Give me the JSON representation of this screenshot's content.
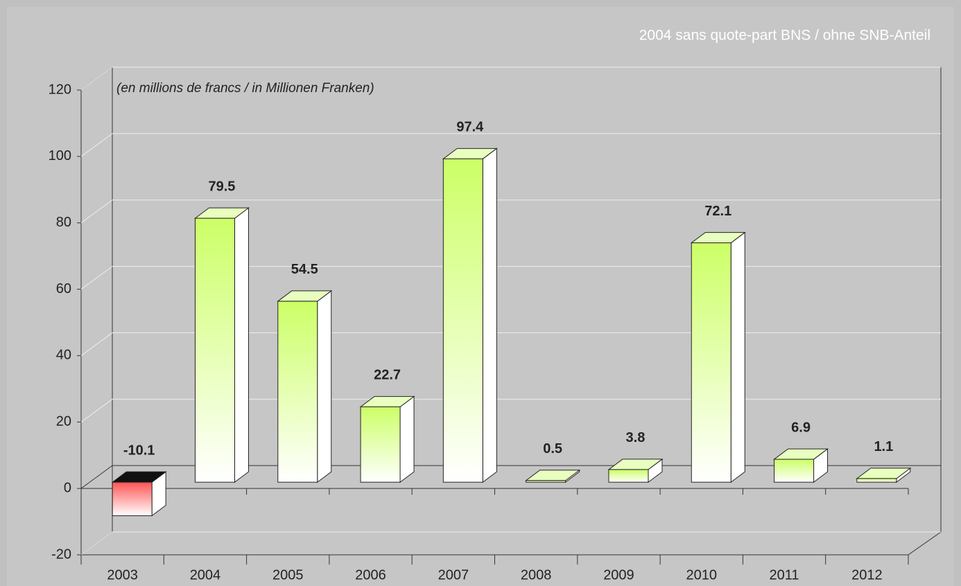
{
  "chart_data": {
    "type": "bar3d",
    "title": "2004 sans quote-part BNS / ohne SNB-Anteil",
    "annotation": "(en millions de francs / in Millionen Franken)",
    "categories": [
      "2003",
      "2004",
      "2005",
      "2006",
      "2007",
      "2008",
      "2009",
      "2010",
      "2011",
      "2012"
    ],
    "values": [
      -10.1,
      79.5,
      54.5,
      22.7,
      97.4,
      0.5,
      3.8,
      72.1,
      6.9,
      1.1
    ],
    "color": "#ccff66",
    "negative_color": "#ff5555",
    "ylim": [
      -20,
      120
    ],
    "yticks": [
      -20,
      0,
      20,
      40,
      60,
      80,
      100,
      120
    ],
    "grid": true
  }
}
